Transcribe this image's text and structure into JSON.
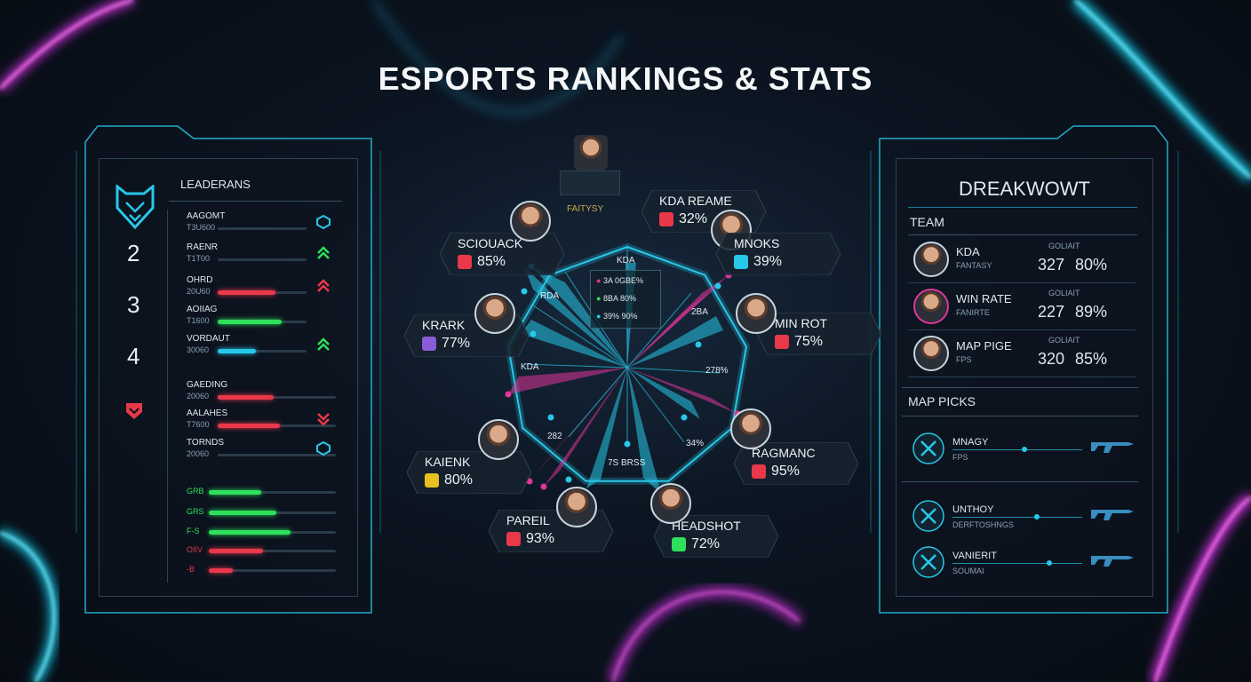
{
  "title": "ESPORTS RANKINGS & STATS",
  "colors": {
    "cyan": "#27c8e8",
    "magenta": "#e0359a",
    "green": "#2fe05a",
    "red": "#e8384a"
  },
  "left_panel": {
    "header": "LEADERANS",
    "logo_icon": "wolf-shield-icon",
    "ranks": [
      "2",
      "3",
      "4"
    ],
    "rows": [
      {
        "name": "AAGOMT",
        "sub": "T3U600",
        "fill": 0,
        "color": "#e8384a",
        "icon": "hex-badge-icon"
      },
      {
        "name": "RAENR",
        "sub": "T1T00",
        "fill": 0,
        "color": "#e8384a",
        "icon": "chevron-up-green-icon"
      },
      {
        "name": "OHRD",
        "sub": "20U60",
        "fill": 0.65,
        "color": "#e8384a",
        "icon": "chevron-up-red-icon"
      },
      {
        "name": "AOIIAG",
        "sub": "T1600",
        "fill": 0.72,
        "color": "#2fe05a",
        "icon": ""
      },
      {
        "name": "VORDAUT",
        "sub": "30060",
        "fill": 0.43,
        "color": "#27c8e8",
        "icon": "chevron-up-green-icon"
      },
      {
        "name": "GAEDING",
        "sub": "20060",
        "fill": 0.47,
        "color": "#e8384a",
        "icon": ""
      },
      {
        "name": "AALAHES",
        "sub": "T7600",
        "fill": 0.53,
        "color": "#e8384a",
        "icon": "chevron-down-red-icon"
      },
      {
        "name": "TORNDS",
        "sub": "20060",
        "fill": 0,
        "color": "#e8384a",
        "icon": "hex-badge-icon"
      }
    ],
    "mini_rows": [
      {
        "label": "GRB",
        "fill": 0.41,
        "color": "#2fe05a"
      },
      {
        "label": "GRS",
        "fill": 0.53,
        "color": "#2fe05a"
      },
      {
        "label": "F-S",
        "fill": 0.64,
        "color": "#2fe05a"
      },
      {
        "label": "OIIV",
        "fill": 0.43,
        "color": "#e8384a"
      },
      {
        "label": "-B",
        "fill": 0.19,
        "color": "#e8384a"
      }
    ]
  },
  "center": {
    "top_player_label": "FAITYSY",
    "axis_labels": [
      "KDA",
      "RDA",
      "KDA",
      "282",
      "2BA",
      "278%",
      "34%",
      "7S BRSS"
    ],
    "legend": [
      "3A 0GBE%",
      "8BA 80%",
      "39% 90%"
    ],
    "players": [
      {
        "name": "SCIOUACK",
        "pct": "85%",
        "badge_color": "#e8384a"
      },
      {
        "name": "KDA REAME",
        "pct": "32%",
        "badge_color": "#e8384a"
      },
      {
        "name": "MNOKS",
        "pct": "39%",
        "badge_color": "#27c8e8"
      },
      {
        "name": "KRARK",
        "pct": "77%",
        "badge_color": "#8a5cd8"
      },
      {
        "name": "MIN ROT",
        "pct": "75%",
        "badge_color": "#e8384a"
      },
      {
        "name": "KAIENK",
        "pct": "80%",
        "badge_color": "#e8c020"
      },
      {
        "name": "RAGMANC",
        "pct": "95%",
        "badge_color": "#e8384a"
      },
      {
        "name": "PAREIL",
        "pct": "93%",
        "badge_color": "#e8384a"
      },
      {
        "name": "HEADSHOT",
        "pct": "72%",
        "badge_color": "#2fe05a"
      }
    ]
  },
  "right_panel": {
    "header": "DREAKWOWT",
    "team_label": "TEAM",
    "team_rows": [
      {
        "stat": "KDA",
        "sub": "FANTASY",
        "col_label": "GOLIAIT",
        "val1": "327",
        "val2": "80%"
      },
      {
        "stat": "WIN RATE",
        "sub": "FANIRTE",
        "col_label": "GOLIAIT",
        "val1": "227",
        "val2": "89%"
      },
      {
        "stat": "MAP PIGE",
        "sub": "FPS",
        "col_label": "GOLIAIT",
        "val1": "320",
        "val2": "85%"
      }
    ],
    "map_picks_label": "MAP PICKS",
    "maps": [
      {
        "name": "MNAGY",
        "sub": "FPS",
        "icon": "crossed-swords-icon",
        "weapon": "rifle-icon"
      },
      {
        "name": "UNTHOY",
        "sub": "DERFTOSHNGS",
        "icon": "agent-emblem-icon",
        "weapon": "rifle-icon"
      },
      {
        "name": "VANIERIT",
        "sub": "SOUMAI",
        "icon": "blade-emblem-icon",
        "weapon": "rifle-icon"
      }
    ]
  }
}
